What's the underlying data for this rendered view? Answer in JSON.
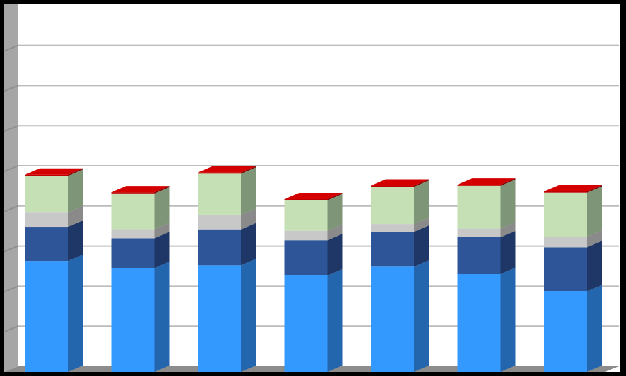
{
  "chart_data": {
    "type": "bar",
    "stacked": true,
    "three_d": true,
    "categories": [
      "",
      "",
      "",
      "",
      "",
      "",
      ""
    ],
    "ylim": [
      0,
      100
    ],
    "grid": true,
    "legend": "none",
    "series": [
      {
        "values": [
          56.7,
          53.1,
          54.5,
          49.3,
          53.8,
          50.0,
          41.2
        ]
      },
      {
        "values": [
          17.4,
          15.2,
          18.3,
          18.0,
          17.8,
          18.8,
          22.5
        ]
      },
      {
        "values": [
          7.4,
          4.6,
          7.4,
          4.8,
          3.9,
          4.4,
          5.4
        ]
      },
      {
        "values": [
          18.7,
          18.3,
          21.1,
          15.6,
          19.1,
          21.9,
          22.5
        ]
      },
      {
        "values": [
          0.6,
          0.6,
          0.6,
          0.6,
          0.6,
          0.6,
          0.6
        ]
      }
    ],
    "colors": {
      "front": [
        "#3399ff",
        "#2e5597",
        "#c8c8c8",
        "#c4e0b4",
        "#c00000"
      ],
      "side": [
        "#2366ad",
        "#1f3766",
        "#8a8a8a",
        "#7f9577",
        "#800000"
      ],
      "top": [
        "#5aaeff",
        "#4a70b0",
        "#dcdcdc",
        "#d8ecca",
        "#d40000"
      ],
      "plot_background": "#ffffff",
      "gridline": "#bcbcbc",
      "wall": "#a6a6a6",
      "frame": "#000000"
    }
  }
}
